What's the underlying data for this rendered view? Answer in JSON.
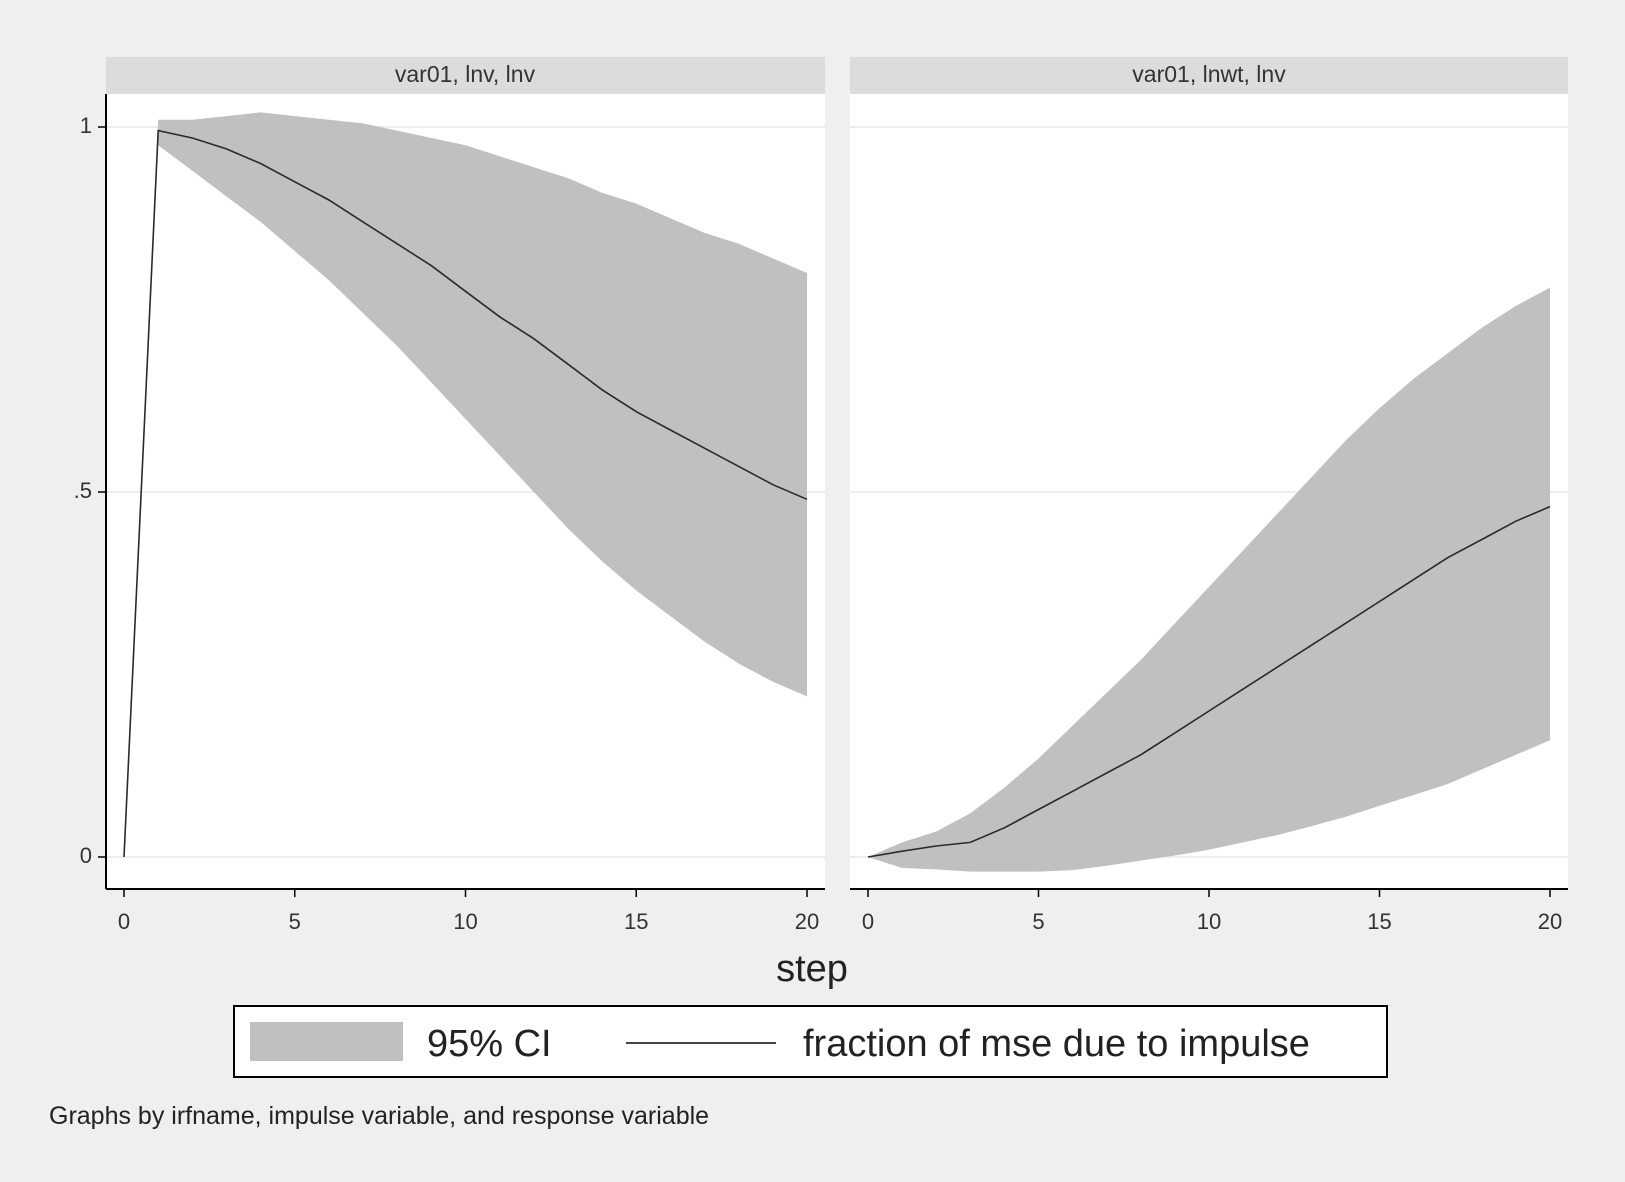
{
  "chart_data": {
    "type": "line",
    "xlabel": "step",
    "xlim": [
      0,
      20
    ],
    "ylim": [
      0,
      1
    ],
    "x_ticks": [
      "0",
      "5",
      "10",
      "15",
      "20"
    ],
    "y_ticks": [
      "0",
      ".5",
      "1"
    ],
    "y_tick_values": [
      0,
      0.5,
      1
    ],
    "x_tick_values": [
      0,
      5,
      10,
      15,
      20
    ],
    "band_color": "#c0c0c0",
    "line_color": "#2a2a2a",
    "panels": [
      {
        "title": "var01, lnv, lnv",
        "x": [
          0,
          1,
          2,
          3,
          4,
          5,
          6,
          7,
          8,
          9,
          10,
          11,
          12,
          13,
          14,
          15,
          16,
          17,
          18,
          19,
          20
        ],
        "fraction": [
          0,
          0.995,
          0.985,
          0.97,
          0.95,
          0.925,
          0.9,
          0.87,
          0.84,
          0.81,
          0.775,
          0.74,
          0.71,
          0.675,
          0.64,
          0.61,
          0.585,
          0.56,
          0.535,
          0.51,
          0.49
        ],
        "ci_lower": [
          0,
          0.975,
          0.94,
          0.905,
          0.87,
          0.83,
          0.79,
          0.745,
          0.7,
          0.65,
          0.6,
          0.55,
          0.5,
          0.45,
          0.405,
          0.365,
          0.33,
          0.295,
          0.265,
          0.24,
          0.22
        ],
        "ci_upper": [
          0,
          1.01,
          1.01,
          1.015,
          1.02,
          1.015,
          1.01,
          1.005,
          0.995,
          0.985,
          0.975,
          0.96,
          0.945,
          0.93,
          0.91,
          0.895,
          0.875,
          0.855,
          0.84,
          0.82,
          0.8
        ]
      },
      {
        "title": "var01, lnwt, lnv",
        "x": [
          0,
          1,
          2,
          3,
          4,
          5,
          6,
          7,
          8,
          9,
          10,
          11,
          12,
          13,
          14,
          15,
          16,
          17,
          18,
          19,
          20
        ],
        "fraction": [
          0,
          0.008,
          0.015,
          0.02,
          0.04,
          0.065,
          0.09,
          0.115,
          0.14,
          0.17,
          0.2,
          0.23,
          0.26,
          0.29,
          0.32,
          0.35,
          0.38,
          0.41,
          0.435,
          0.46,
          0.48
        ],
        "ci_lower": [
          0,
          -0.015,
          -0.017,
          -0.02,
          -0.02,
          -0.02,
          -0.018,
          -0.012,
          -0.005,
          0.002,
          0.01,
          0.02,
          0.03,
          0.042,
          0.055,
          0.07,
          0.085,
          0.1,
          0.12,
          0.14,
          0.16
        ],
        "ci_upper": [
          0,
          0.02,
          0.035,
          0.06,
          0.095,
          0.135,
          0.18,
          0.225,
          0.27,
          0.32,
          0.37,
          0.42,
          0.47,
          0.52,
          0.57,
          0.615,
          0.655,
          0.69,
          0.725,
          0.755,
          0.78
        ]
      }
    ],
    "legend": {
      "ci_label": "95% CI",
      "line_label": "fraction of mse due to impulse",
      "position": "bottom"
    },
    "note": "Graphs by irfname, impulse variable, and response variable"
  }
}
